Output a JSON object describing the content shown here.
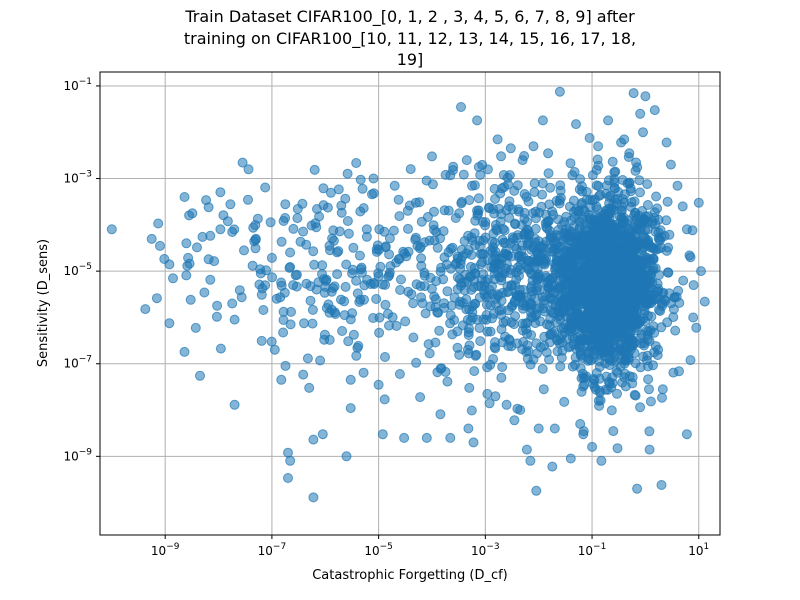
{
  "chart_data": {
    "type": "scatter",
    "title_lines": [
      "Train Dataset CIFAR100_[0, 1, 2 , 3, 4, 5, 6, 7, 8, 9] after",
      "training on CIFAR100_[10, 11, 12, 13, 14, 15, 16, 17, 18,",
      "19]"
    ],
    "xlabel": "Catastrophic Forgetting (D_cf)",
    "ylabel": "Sensitivity (D_sens)",
    "x_scale": "log",
    "y_scale": "log",
    "xlim": [
      6e-11,
      25
    ],
    "ylim": [
      2e-11,
      0.2
    ],
    "x_ticks": [
      {
        "value": 1e-09,
        "base": "10",
        "exp": "−9"
      },
      {
        "value": 1e-07,
        "base": "10",
        "exp": "−7"
      },
      {
        "value": 1e-05,
        "base": "10",
        "exp": "−5"
      },
      {
        "value": 0.001,
        "base": "10",
        "exp": "−3"
      },
      {
        "value": 0.1,
        "base": "10",
        "exp": "−1"
      },
      {
        "value": 10,
        "base": "10",
        "exp": "1"
      }
    ],
    "y_ticks": [
      {
        "value": 1e-09,
        "base": "10",
        "exp": "−9"
      },
      {
        "value": 1e-07,
        "base": "10",
        "exp": "−7"
      },
      {
        "value": 1e-05,
        "base": "10",
        "exp": "−5"
      },
      {
        "value": 0.001,
        "base": "10",
        "exp": "−3"
      },
      {
        "value": 0.1,
        "base": "10",
        "exp": "−1"
      }
    ],
    "grid": true,
    "marker_color": "#1f77b4",
    "marker_alpha": 0.55,
    "point_count": 2600,
    "points": [
      [
        1e-10,
        8e-05
      ],
      [
        8e-10,
        3.5e-05
      ],
      [
        1.2e-09,
        1.4e-05
      ],
      [
        1.4e-09,
        7e-06
      ],
      [
        7e-10,
        2.6e-06
      ],
      [
        1.2e-09,
        7.5e-07
      ],
      [
        2.3e-09,
        0.0004
      ],
      [
        2.8e-09,
        0.00016
      ],
      [
        2.5e-09,
        4e-05
      ],
      [
        2.6e-09,
        1.3e-05
      ],
      [
        3e-09,
        2.4e-06
      ],
      [
        2.3e-09,
        1.8e-07
      ],
      [
        4.5e-09,
        5.5e-08
      ],
      [
        5e-09,
        5.5e-05
      ],
      [
        6.5e-09,
        0.00024
      ],
      [
        7e-09,
        5.8e-05
      ],
      [
        6.5e-09,
        1.8e-05
      ],
      [
        7e-09,
        6.5e-06
      ],
      [
        1.5e-08,
        0.00012
      ],
      [
        1.8e-08,
        7e-05
      ],
      [
        1.8e-08,
        2e-06
      ],
      [
        2e-08,
        9e-07
      ],
      [
        2e-08,
        1.3e-08
      ],
      [
        3e-08,
        2.8e-05
      ],
      [
        5e-08,
        5e-05
      ],
      [
        6e-08,
        1.1e-05
      ],
      [
        1.5e-07,
        4.5e-08
      ],
      [
        1.8e-07,
        9e-08
      ],
      [
        2e-07,
        1.2e-09
      ],
      [
        2.2e-07,
        8e-10
      ],
      [
        2e-07,
        3.4e-10
      ],
      [
        2.5e-07,
        5e-06
      ],
      [
        3e-07,
        0.00014
      ],
      [
        4e-07,
        7.5e-07
      ],
      [
        5e-07,
        3e-08
      ],
      [
        6e-07,
        2.3e-09
      ],
      [
        6e-07,
        1.3e-10
      ],
      [
        7e-07,
        0.00022
      ],
      [
        9e-07,
        3e-09
      ],
      [
        1.2e-06,
        3.5e-05
      ],
      [
        1.5e-06,
        1.3e-06
      ],
      [
        2e-06,
        0.00026
      ],
      [
        2.5e-06,
        1e-09
      ],
      [
        3e-06,
        1.1e-08
      ],
      [
        3e-06,
        4.5e-08
      ],
      [
        4e-06,
        2.2e-07
      ],
      [
        5e-06,
        0.0006
      ],
      [
        6e-06,
        8e-05
      ],
      [
        8e-06,
        0.001
      ],
      [
        9e-06,
        2.5e-06
      ],
      [
        1e-05,
        3.5e-08
      ],
      [
        1.2e-05,
        3e-09
      ],
      [
        1.3e-05,
        1.7e-08
      ],
      [
        1.5e-05,
        1.2e-06
      ],
      [
        2e-05,
        0.0007
      ],
      [
        2.5e-05,
        6e-08
      ],
      [
        3e-05,
        2.5e-09
      ],
      [
        4e-05,
        0.0016
      ],
      [
        5e-05,
        0.0003
      ],
      [
        6e-05,
        1.9e-08
      ],
      [
        8e-05,
        2.5e-09
      ],
      [
        0.0001,
        0.003
      ],
      [
        0.00012,
        7e-05
      ],
      [
        0.00015,
        8e-08
      ],
      [
        0.00018,
        0.0012
      ],
      [
        0.00022,
        2.5e-09
      ],
      [
        0.00025,
        0.0018
      ],
      [
        0.0003,
        5e-07
      ],
      [
        0.00035,
        0.035
      ],
      [
        0.00045,
        0.0025
      ],
      [
        0.0005,
        3e-08
      ],
      [
        0.0006,
        2e-09
      ],
      [
        0.0007,
        0.018
      ],
      [
        0.0008,
        0.0012
      ],
      [
        0.001,
        6e-06
      ],
      [
        0.0012,
        1.4e-08
      ],
      [
        0.0014,
        0.00022
      ],
      [
        0.0017,
        0.007
      ],
      [
        0.002,
        5e-08
      ],
      [
        0.0025,
        1.3e-08
      ],
      [
        0.003,
        0.0045
      ],
      [
        0.0035,
        6e-09
      ],
      [
        0.0045,
        1e-08
      ],
      [
        0.005,
        0.0025
      ],
      [
        0.006,
        1.4e-09
      ],
      [
        0.007,
        8e-10
      ],
      [
        0.008,
        0.005
      ],
      [
        0.009,
        1.8e-10
      ],
      [
        0.01,
        4e-09
      ],
      [
        0.012,
        0.018
      ],
      [
        0.015,
        0.0035
      ],
      [
        0.018,
        6e-10
      ],
      [
        0.02,
        4e-09
      ],
      [
        0.025,
        0.075
      ],
      [
        0.03,
        1.5e-08
      ],
      [
        0.04,
        9e-10
      ],
      [
        0.05,
        0.015
      ],
      [
        0.06,
        5e-09
      ],
      [
        0.07,
        3.5e-09
      ],
      [
        0.09,
        0.0075
      ],
      [
        0.1,
        1.6e-09
      ],
      [
        0.13,
        0.005
      ],
      [
        0.15,
        8e-10
      ],
      [
        0.2,
        0.018
      ],
      [
        0.25,
        3.5e-09
      ],
      [
        0.3,
        1.5e-09
      ],
      [
        0.35,
        0.006
      ],
      [
        0.4,
        0.007
      ],
      [
        0.5,
        0.0035
      ],
      [
        0.6,
        0.07
      ],
      [
        0.7,
        2e-10
      ],
      [
        0.8,
        0.025
      ],
      [
        0.9,
        0.01
      ],
      [
        1,
        0.06
      ],
      [
        1.2,
        1.4e-09
      ],
      [
        1.5,
        0.03
      ],
      [
        2,
        2.4e-10
      ],
      [
        2.5,
        0.006
      ],
      [
        3,
        0.002
      ],
      [
        4,
        0.0007
      ],
      [
        5,
        0.00025
      ],
      [
        6,
        8e-05
      ],
      [
        7,
        2e-05
      ],
      [
        8,
        5e-06
      ],
      [
        10,
        0.0003
      ],
      [
        13,
        2.2e-06
      ],
      [
        11,
        1e-05
      ],
      [
        9,
        6e-07
      ],
      [
        7,
        1.2e-07
      ],
      [
        6,
        3e-09
      ]
    ],
    "clusters": [
      {
        "lx_mean": -0.7,
        "lx_sd": 0.45,
        "ly_mean": -5.3,
        "ly_sd": 0.95,
        "count": 1700
      },
      {
        "lx_mean": -2.2,
        "lx_sd": 1.0,
        "ly_mean": -5.0,
        "ly_sd": 1.0,
        "count": 650
      },
      {
        "lx_mean": -5.5,
        "lx_sd": 1.5,
        "ly_mean": -5.0,
        "ly_sd": 1.0,
        "count": 250
      }
    ]
  }
}
